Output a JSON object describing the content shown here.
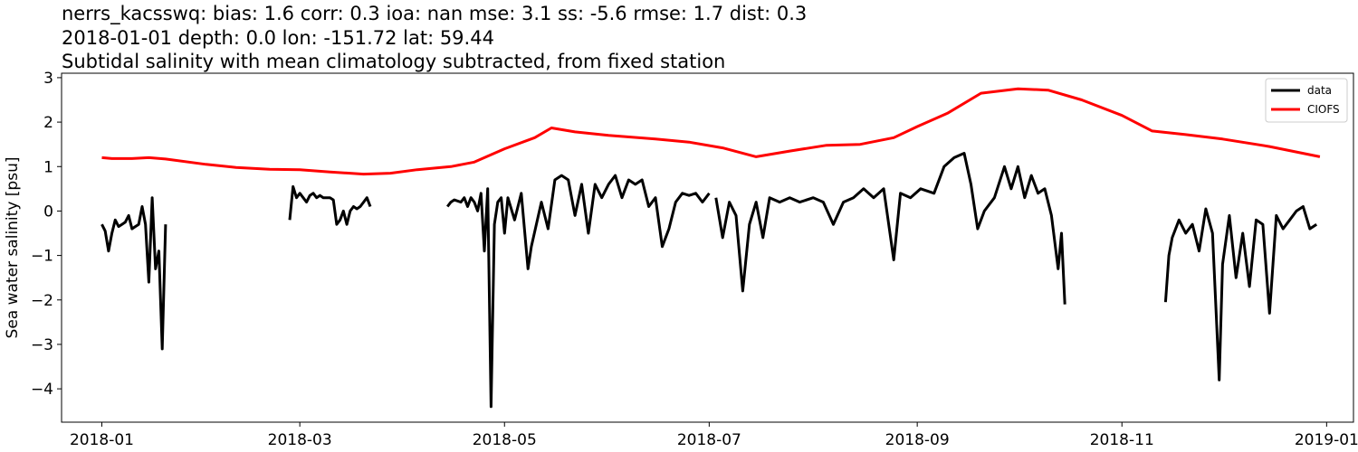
{
  "chart_data": {
    "type": "line",
    "title_lines": [
      "nerrs_kacsswq: bias: 1.6  corr: 0.3  ioa: nan  mse: 3.1  ss: -5.6  rmse: 1.7  dist: 0.3",
      "2018-01-01 depth: 0.0 lon: -151.72 lat: 59.44",
      "Subtidal salinity with mean climatology subtracted, from fixed station"
    ],
    "ylabel": "Sea water salinity [psu]",
    "xlabel": "",
    "xlim": [
      "2017-12-20",
      "2019-01-09"
    ],
    "ylim": [
      -4.75,
      3.1
    ],
    "x_ticks": [
      "2018-01",
      "2018-03",
      "2018-05",
      "2018-07",
      "2018-09",
      "2018-11",
      "2019-01"
    ],
    "y_ticks": [
      {
        "value": 3,
        "label": "3"
      },
      {
        "value": 2,
        "label": "2"
      },
      {
        "value": 1,
        "label": "1"
      },
      {
        "value": 0,
        "label": "0"
      },
      {
        "value": -1,
        "label": "−1"
      },
      {
        "value": -2,
        "label": "−2"
      },
      {
        "value": -3,
        "label": "−3"
      },
      {
        "value": -4,
        "label": "−4"
      }
    ],
    "grid": false,
    "legend_position": "top-right",
    "series": [
      {
        "name": "data",
        "color": "#000000",
        "segments": [
          [
            [
              "2018-01-01",
              -0.3
            ],
            [
              "2018-01-02",
              -0.45
            ],
            [
              "2018-01-03",
              -0.9
            ],
            [
              "2018-01-04",
              -0.5
            ],
            [
              "2018-01-05",
              -0.2
            ],
            [
              "2018-01-06",
              -0.35
            ],
            [
              "2018-01-07",
              -0.3
            ],
            [
              "2018-01-08",
              -0.25
            ],
            [
              "2018-01-09",
              -0.1
            ],
            [
              "2018-01-10",
              -0.4
            ],
            [
              "2018-01-11",
              -0.35
            ],
            [
              "2018-01-12",
              -0.3
            ],
            [
              "2018-01-13",
              0.1
            ],
            [
              "2018-01-14",
              -0.3
            ],
            [
              "2018-01-15",
              -1.6
            ],
            [
              "2018-01-16",
              0.3
            ],
            [
              "2018-01-17",
              -1.3
            ],
            [
              "2018-01-18",
              -0.9
            ],
            [
              "2018-01-19",
              -3.1
            ],
            [
              "2018-01-20",
              -0.3
            ]
          ],
          [
            [
              "2018-02-26",
              -0.2
            ],
            [
              "2018-02-27",
              0.55
            ],
            [
              "2018-02-28",
              0.3
            ],
            [
              "2018-03-01",
              0.4
            ],
            [
              "2018-03-02",
              0.3
            ],
            [
              "2018-03-03",
              0.2
            ],
            [
              "2018-03-04",
              0.35
            ],
            [
              "2018-03-05",
              0.4
            ],
            [
              "2018-03-06",
              0.3
            ],
            [
              "2018-03-07",
              0.35
            ],
            [
              "2018-03-08",
              0.3
            ],
            [
              "2018-03-09",
              0.3
            ],
            [
              "2018-03-10",
              0.3
            ],
            [
              "2018-03-11",
              0.25
            ],
            [
              "2018-03-12",
              -0.3
            ],
            [
              "2018-03-13",
              -0.2
            ],
            [
              "2018-03-14",
              0.0
            ],
            [
              "2018-03-15",
              -0.3
            ],
            [
              "2018-03-16",
              0.0
            ],
            [
              "2018-03-17",
              0.1
            ],
            [
              "2018-03-18",
              0.05
            ],
            [
              "2018-03-19",
              0.1
            ],
            [
              "2018-03-20",
              0.2
            ],
            [
              "2018-03-21",
              0.3
            ],
            [
              "2018-03-22",
              0.1
            ]
          ],
          [
            [
              "2018-04-14",
              0.1
            ],
            [
              "2018-04-15",
              0.2
            ],
            [
              "2018-04-16",
              0.25
            ],
            [
              "2018-04-18",
              0.2
            ],
            [
              "2018-04-19",
              0.3
            ],
            [
              "2018-04-20",
              0.1
            ],
            [
              "2018-04-21",
              0.3
            ],
            [
              "2018-04-22",
              0.2
            ],
            [
              "2018-04-23",
              0.0
            ],
            [
              "2018-04-24",
              0.4
            ],
            [
              "2018-04-25",
              -0.9
            ],
            [
              "2018-04-26",
              0.5
            ],
            [
              "2018-04-27",
              -4.4
            ],
            [
              "2018-04-28",
              -0.3
            ],
            [
              "2018-04-29",
              0.2
            ],
            [
              "2018-04-30",
              0.3
            ],
            [
              "2018-05-01",
              -0.5
            ],
            [
              "2018-05-02",
              0.3
            ],
            [
              "2018-05-04",
              -0.2
            ],
            [
              "2018-05-06",
              0.4
            ],
            [
              "2018-05-08",
              -1.3
            ],
            [
              "2018-05-09",
              -0.8
            ],
            [
              "2018-05-12",
              0.2
            ],
            [
              "2018-05-14",
              -0.4
            ],
            [
              "2018-05-16",
              0.7
            ],
            [
              "2018-05-18",
              0.8
            ],
            [
              "2018-05-20",
              0.7
            ],
            [
              "2018-05-22",
              -0.1
            ],
            [
              "2018-05-24",
              0.6
            ],
            [
              "2018-05-26",
              -0.5
            ],
            [
              "2018-05-28",
              0.6
            ],
            [
              "2018-05-30",
              0.3
            ],
            [
              "2018-06-01",
              0.6
            ],
            [
              "2018-06-03",
              0.8
            ],
            [
              "2018-06-05",
              0.3
            ],
            [
              "2018-06-07",
              0.7
            ],
            [
              "2018-06-09",
              0.6
            ],
            [
              "2018-06-11",
              0.7
            ],
            [
              "2018-06-13",
              0.1
            ],
            [
              "2018-06-15",
              0.3
            ],
            [
              "2018-06-17",
              -0.8
            ],
            [
              "2018-06-19",
              -0.4
            ],
            [
              "2018-06-21",
              0.2
            ],
            [
              "2018-06-23",
              0.4
            ],
            [
              "2018-06-25",
              0.35
            ],
            [
              "2018-06-27",
              0.4
            ],
            [
              "2018-06-29",
              0.2
            ],
            [
              "2018-07-01",
              0.4
            ]
          ],
          [
            [
              "2018-07-03",
              0.3
            ],
            [
              "2018-07-05",
              -0.6
            ],
            [
              "2018-07-07",
              0.2
            ],
            [
              "2018-07-09",
              -0.1
            ],
            [
              "2018-07-11",
              -1.8
            ],
            [
              "2018-07-13",
              -0.3
            ],
            [
              "2018-07-15",
              0.2
            ],
            [
              "2018-07-17",
              -0.6
            ],
            [
              "2018-07-19",
              0.3
            ],
            [
              "2018-07-22",
              0.2
            ],
            [
              "2018-07-25",
              0.3
            ],
            [
              "2018-07-28",
              0.2
            ],
            [
              "2018-08-01",
              0.3
            ],
            [
              "2018-08-04",
              0.2
            ],
            [
              "2018-08-07",
              -0.3
            ],
            [
              "2018-08-10",
              0.2
            ],
            [
              "2018-08-13",
              0.3
            ],
            [
              "2018-08-16",
              0.5
            ],
            [
              "2018-08-19",
              0.3
            ],
            [
              "2018-08-22",
              0.5
            ],
            [
              "2018-08-25",
              -1.1
            ],
            [
              "2018-08-27",
              0.4
            ],
            [
              "2018-08-30",
              0.3
            ],
            [
              "2018-09-02",
              0.5
            ],
            [
              "2018-09-06",
              0.4
            ],
            [
              "2018-09-09",
              1.0
            ],
            [
              "2018-09-12",
              1.2
            ],
            [
              "2018-09-15",
              1.3
            ],
            [
              "2018-09-17",
              0.6
            ],
            [
              "2018-09-19",
              -0.4
            ],
            [
              "2018-09-21",
              0.0
            ],
            [
              "2018-09-24",
              0.3
            ],
            [
              "2018-09-27",
              1.0
            ],
            [
              "2018-09-29",
              0.5
            ],
            [
              "2018-10-01",
              1.0
            ],
            [
              "2018-10-03",
              0.3
            ],
            [
              "2018-10-05",
              0.8
            ],
            [
              "2018-10-07",
              0.4
            ],
            [
              "2018-10-09",
              0.5
            ],
            [
              "2018-10-11",
              -0.1
            ],
            [
              "2018-10-13",
              -1.3
            ],
            [
              "2018-10-14",
              -0.5
            ],
            [
              "2018-10-15",
              -2.1
            ]
          ],
          [
            [
              "2018-11-14",
              -2.05
            ],
            [
              "2018-11-15",
              -1.0
            ],
            [
              "2018-11-16",
              -0.6
            ],
            [
              "2018-11-18",
              -0.2
            ],
            [
              "2018-11-20",
              -0.5
            ],
            [
              "2018-11-22",
              -0.3
            ],
            [
              "2018-11-24",
              -0.9
            ],
            [
              "2018-11-26",
              0.05
            ],
            [
              "2018-11-28",
              -0.5
            ],
            [
              "2018-11-30",
              -3.8
            ],
            [
              "2018-12-01",
              -1.2
            ],
            [
              "2018-12-03",
              -0.1
            ],
            [
              "2018-12-05",
              -1.5
            ],
            [
              "2018-12-07",
              -0.5
            ],
            [
              "2018-12-09",
              -1.7
            ],
            [
              "2018-12-11",
              -0.2
            ],
            [
              "2018-12-13",
              -0.3
            ],
            [
              "2018-12-15",
              -2.3
            ],
            [
              "2018-12-17",
              -0.1
            ],
            [
              "2018-12-19",
              -0.4
            ],
            [
              "2018-12-21",
              -0.2
            ],
            [
              "2018-12-23",
              0.0
            ],
            [
              "2018-12-25",
              0.1
            ],
            [
              "2018-12-27",
              -0.4
            ],
            [
              "2018-12-29",
              -0.3
            ]
          ]
        ]
      },
      {
        "name": "CIOFS",
        "color": "#ff0000",
        "segments": [
          [
            [
              "2018-01-01",
              1.2
            ],
            [
              "2018-01-04",
              1.18
            ],
            [
              "2018-01-10",
              1.18
            ],
            [
              "2018-01-15",
              1.2
            ],
            [
              "2018-01-20",
              1.17
            ],
            [
              "2018-02-01",
              1.05
            ],
            [
              "2018-02-10",
              0.98
            ],
            [
              "2018-02-20",
              0.94
            ],
            [
              "2018-03-01",
              0.93
            ],
            [
              "2018-03-10",
              0.88
            ],
            [
              "2018-03-20",
              0.83
            ],
            [
              "2018-03-28",
              0.85
            ],
            [
              "2018-04-05",
              0.93
            ],
            [
              "2018-04-15",
              1.0
            ],
            [
              "2018-04-22",
              1.1
            ],
            [
              "2018-05-01",
              1.4
            ],
            [
              "2018-05-10",
              1.65
            ],
            [
              "2018-05-15",
              1.87
            ],
            [
              "2018-05-22",
              1.78
            ],
            [
              "2018-06-01",
              1.7
            ],
            [
              "2018-06-15",
              1.62
            ],
            [
              "2018-06-25",
              1.55
            ],
            [
              "2018-07-05",
              1.42
            ],
            [
              "2018-07-15",
              1.22
            ],
            [
              "2018-07-25",
              1.35
            ],
            [
              "2018-08-05",
              1.48
            ],
            [
              "2018-08-15",
              1.5
            ],
            [
              "2018-08-25",
              1.65
            ],
            [
              "2018-09-01",
              1.9
            ],
            [
              "2018-09-10",
              2.2
            ],
            [
              "2018-09-20",
              2.65
            ],
            [
              "2018-10-01",
              2.75
            ],
            [
              "2018-10-10",
              2.72
            ],
            [
              "2018-10-20",
              2.5
            ],
            [
              "2018-11-01",
              2.15
            ],
            [
              "2018-11-10",
              1.8
            ],
            [
              "2018-11-20",
              1.72
            ],
            [
              "2018-12-01",
              1.62
            ],
            [
              "2018-12-15",
              1.45
            ],
            [
              "2018-12-30",
              1.22
            ]
          ]
        ]
      }
    ]
  }
}
